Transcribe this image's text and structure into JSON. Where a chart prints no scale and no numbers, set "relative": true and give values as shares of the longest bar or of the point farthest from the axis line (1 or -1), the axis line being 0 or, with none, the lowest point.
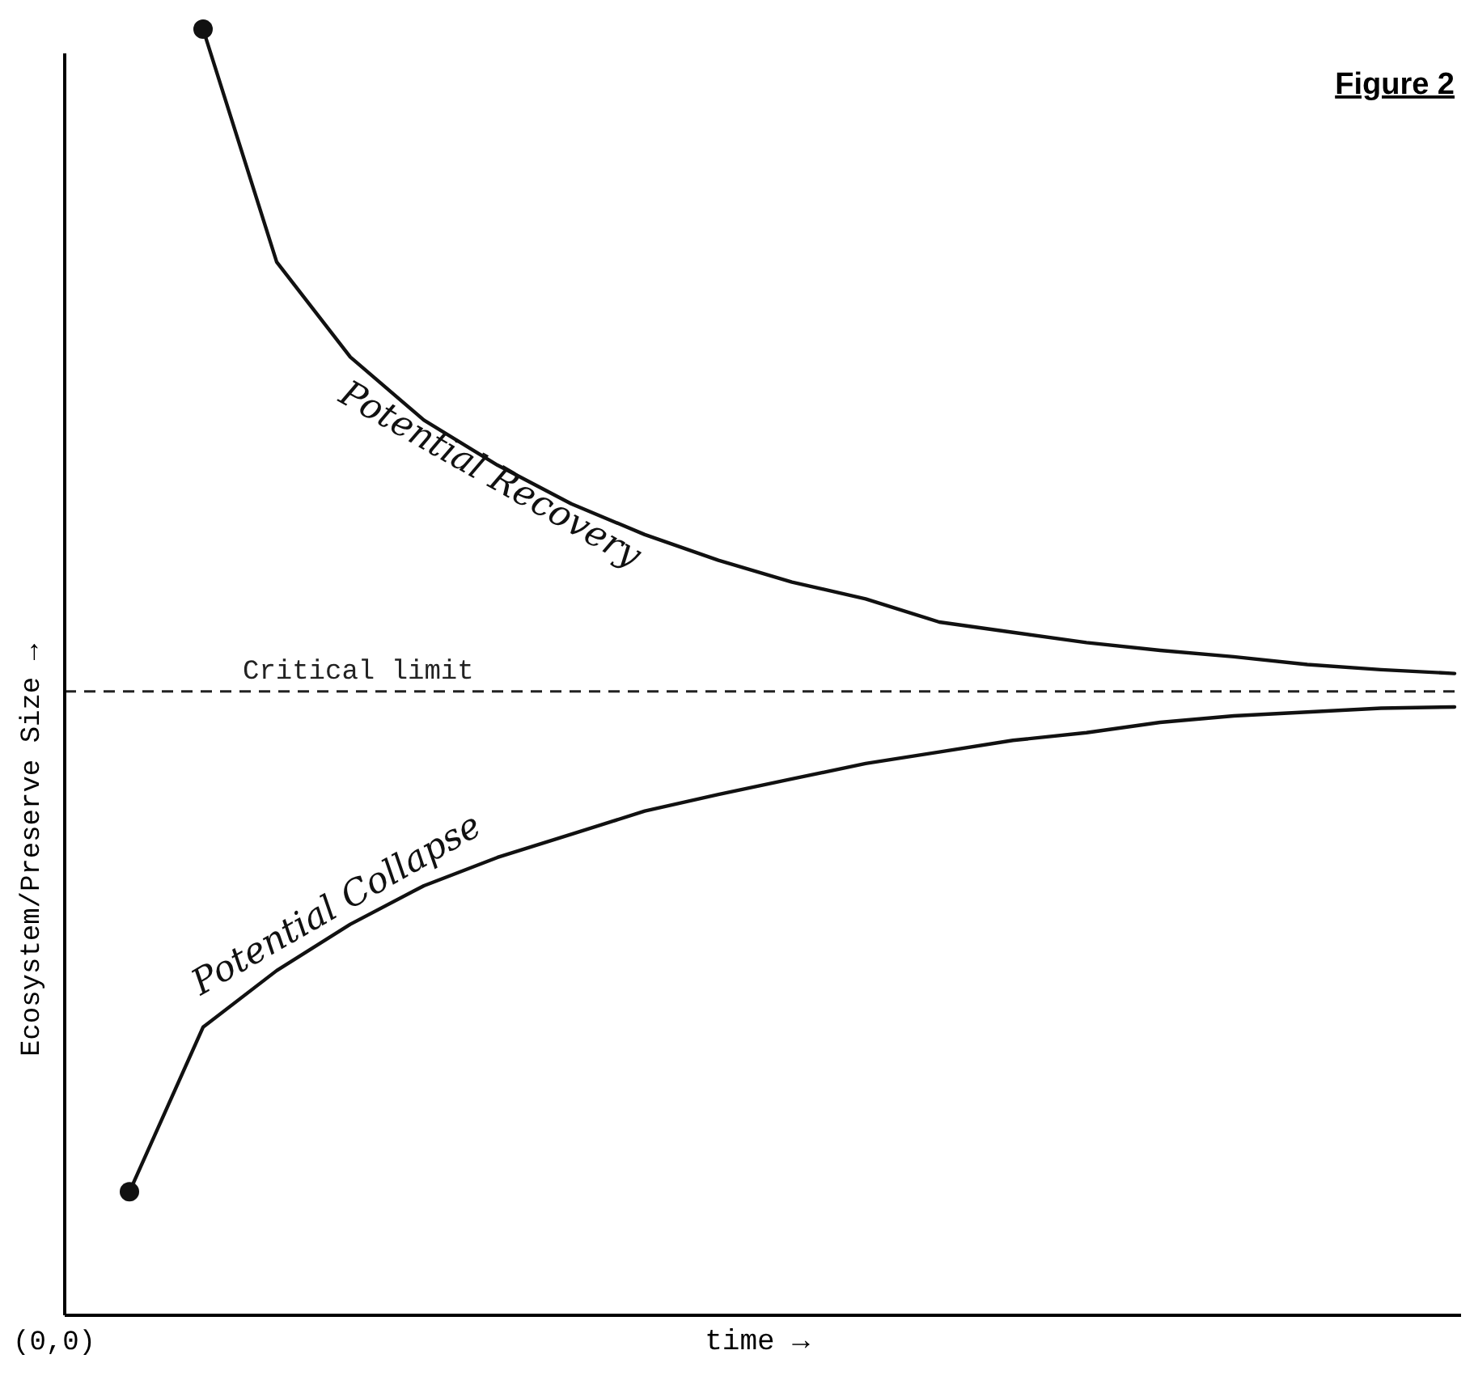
{
  "chart_data": {
    "type": "line",
    "title": "Figure 2",
    "xlabel": "time →",
    "ylabel": "Ecosystem/Preserve Size →",
    "relative": true,
    "line_style": "solid",
    "marker": "none",
    "categories": [
      null,
      null,
      null,
      null,
      null,
      null,
      null,
      null,
      null,
      null,
      null,
      null,
      null,
      null,
      null,
      null,
      null,
      null,
      null
    ],
    "series": [
      {
        "name": "Potential Recovery",
        "color": "#111111",
        "values": [
          null,
          1.0,
          0.819,
          0.745,
          0.696,
          0.661,
          0.631,
          0.607,
          0.587,
          0.57,
          0.557,
          0.539,
          0.531,
          0.523,
          0.517,
          0.512,
          0.506,
          0.502,
          0.499
        ]
      },
      {
        "name": "Potential Collapse",
        "color": "#111111",
        "values": [
          0.096,
          0.224,
          0.268,
          0.304,
          0.334,
          0.356,
          0.374,
          0.392,
          0.405,
          0.417,
          0.429,
          0.438,
          0.447,
          0.453,
          0.461,
          0.466,
          0.469,
          0.472,
          0.473
        ]
      }
    ],
    "ref_lines": [
      {
        "axis": "y",
        "value": 0.485,
        "label": "Critical limit",
        "line_style": "dashed",
        "color": "#222222"
      }
    ],
    "annotations": [
      "(0,0)"
    ]
  }
}
